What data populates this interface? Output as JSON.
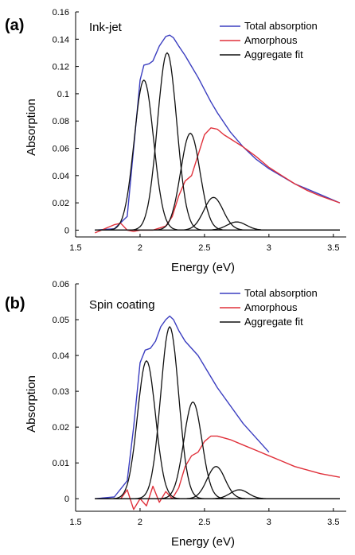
{
  "panels": [
    {
      "panel_label": "(a)",
      "sample_label": "Ink-jet",
      "x_axis_label": "Energy (eV)",
      "y_axis_label": "Absorption",
      "legend": [
        {
          "label": "Total absorption",
          "color": "#3b3ec0"
        },
        {
          "label": "Amorphous",
          "color": "#e0303a"
        },
        {
          "label": "Aggregate fit",
          "color": "#111111"
        }
      ]
    },
    {
      "panel_label": "(b)",
      "sample_label": "Spin coating",
      "x_axis_label": "Energy (eV)",
      "y_axis_label": "Absorption",
      "legend": [
        {
          "label": "Total absorption",
          "color": "#3b3ec0"
        },
        {
          "label": "Amorphous",
          "color": "#e0303a"
        },
        {
          "label": "Aggregate fit",
          "color": "#111111"
        }
      ]
    }
  ],
  "chart_data": [
    {
      "type": "line",
      "xlabel": "Energy (eV)",
      "ylabel": "Absorption",
      "xlim": [
        1.5,
        3.6
      ],
      "ylim": [
        -0.005,
        0.16
      ],
      "x_ticks": [
        "1.5",
        "2",
        "2.5",
        "3",
        "3.5"
      ],
      "y_ticks": [
        "0",
        "0.02",
        "0.04",
        "0.06",
        "0.08",
        "0.1",
        "0.12",
        "0.14",
        "0.16"
      ],
      "x_tick_values": [
        1.5,
        2,
        2.5,
        3,
        3.5
      ],
      "y_tick_values": [
        0,
        0.02,
        0.04,
        0.06,
        0.08,
        0.1,
        0.12,
        0.14,
        0.16
      ],
      "grid": false,
      "legend_position": "top-right",
      "series": [
        {
          "name": "Total absorption",
          "color": "#3b3ec0",
          "x": [
            1.65,
            1.8,
            1.9,
            1.95,
            2.0,
            2.03,
            2.07,
            2.1,
            2.15,
            2.2,
            2.23,
            2.26,
            2.3,
            2.35,
            2.4,
            2.45,
            2.5,
            2.55,
            2.6,
            2.7,
            2.8,
            2.9,
            3.0,
            3.2,
            3.4,
            3.55
          ],
          "y": [
            0,
            0.001,
            0.01,
            0.06,
            0.11,
            0.121,
            0.122,
            0.124,
            0.135,
            0.142,
            0.143,
            0.141,
            0.135,
            0.128,
            0.12,
            0.112,
            0.103,
            0.094,
            0.086,
            0.072,
            0.061,
            0.052,
            0.045,
            0.034,
            0.026,
            0.02
          ]
        },
        {
          "name": "Amorphous",
          "color": "#e0303a",
          "x": [
            1.65,
            1.75,
            1.8,
            1.85,
            1.9,
            1.95,
            2.0,
            2.1,
            2.2,
            2.25,
            2.3,
            2.35,
            2.4,
            2.45,
            2.5,
            2.55,
            2.6,
            2.65,
            2.7,
            2.8,
            2.9,
            3.0,
            3.1,
            3.2,
            3.3,
            3.4,
            3.55
          ],
          "y": [
            -0.002,
            0.002,
            0.004,
            0.005,
            0.0,
            -0.001,
            0.0,
            0.0,
            0.003,
            0.01,
            0.025,
            0.036,
            0.04,
            0.055,
            0.07,
            0.075,
            0.074,
            0.07,
            0.067,
            0.061,
            0.054,
            0.046,
            0.04,
            0.034,
            0.029,
            0.025,
            0.02
          ]
        },
        {
          "name": "Aggregate fit",
          "color": "#111111",
          "peaks": [
            {
              "center": 2.03,
              "height": 0.11,
              "width": 0.075
            },
            {
              "center": 2.21,
              "height": 0.13,
              "width": 0.075
            },
            {
              "center": 2.39,
              "height": 0.071,
              "width": 0.075
            },
            {
              "center": 2.57,
              "height": 0.024,
              "width": 0.075
            },
            {
              "center": 2.75,
              "height": 0.006,
              "width": 0.075
            }
          ]
        }
      ]
    },
    {
      "type": "line",
      "xlabel": "Energy (eV)",
      "ylabel": "Absorption",
      "xlim": [
        1.5,
        3.6
      ],
      "ylim": [
        -0.0035,
        0.06
      ],
      "x_ticks": [
        "1.5",
        "2",
        "2.5",
        "3",
        "3.5"
      ],
      "y_ticks": [
        "0",
        "0.01",
        "0.02",
        "0.03",
        "0.04",
        "0.05",
        "0.06"
      ],
      "x_tick_values": [
        1.5,
        2,
        2.5,
        3,
        3.5
      ],
      "y_tick_values": [
        0,
        0.01,
        0.02,
        0.03,
        0.04,
        0.05,
        0.06
      ],
      "grid": false,
      "legend_position": "top-right",
      "series": [
        {
          "name": "Total absorption",
          "color": "#3b3ec0",
          "x": [
            1.65,
            1.8,
            1.9,
            1.95,
            2.0,
            2.04,
            2.08,
            2.12,
            2.16,
            2.2,
            2.23,
            2.26,
            2.3,
            2.35,
            2.4,
            2.45,
            2.5,
            2.55,
            2.6,
            2.7,
            2.8,
            2.9,
            3.0
          ],
          "y": [
            0,
            0.0005,
            0.005,
            0.02,
            0.038,
            0.0415,
            0.042,
            0.044,
            0.048,
            0.05,
            0.051,
            0.05,
            0.047,
            0.044,
            0.042,
            0.04,
            0.037,
            0.034,
            0.031,
            0.026,
            0.021,
            0.017,
            0.013
          ]
        },
        {
          "name": "Amorphous",
          "color": "#e0303a",
          "x": [
            1.65,
            1.85,
            1.9,
            1.95,
            2.0,
            2.05,
            2.1,
            2.15,
            2.2,
            2.25,
            2.3,
            2.35,
            2.4,
            2.45,
            2.5,
            2.55,
            2.6,
            2.7,
            2.8,
            2.9,
            3.0,
            3.1,
            3.2,
            3.3,
            3.4,
            3.55
          ],
          "y": [
            0,
            0.0,
            0.0025,
            -0.003,
            0.0,
            -0.002,
            0.0035,
            -0.001,
            0.002,
            0.0,
            0.003,
            0.009,
            0.012,
            0.013,
            0.016,
            0.0175,
            0.0175,
            0.0165,
            0.015,
            0.0135,
            0.012,
            0.0105,
            0.009,
            0.008,
            0.007,
            0.006
          ]
        },
        {
          "name": "Aggregate fit",
          "color": "#111111",
          "peaks": [
            {
              "center": 2.05,
              "height": 0.0385,
              "width": 0.07
            },
            {
              "center": 2.23,
              "height": 0.048,
              "width": 0.07
            },
            {
              "center": 2.41,
              "height": 0.027,
              "width": 0.07
            },
            {
              "center": 2.59,
              "height": 0.009,
              "width": 0.07
            },
            {
              "center": 2.77,
              "height": 0.0025,
              "width": 0.07
            }
          ]
        }
      ]
    }
  ]
}
